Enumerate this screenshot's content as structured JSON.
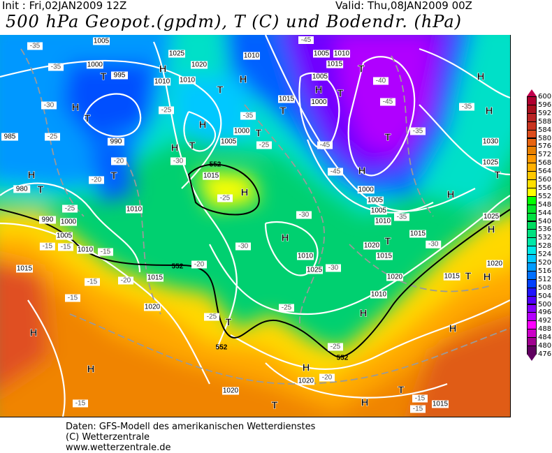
{
  "header": {
    "init": "Init : Fri,02JAN2009  12Z",
    "valid": "Valid: Thu,08JAN2009  00Z",
    "title": "500 hPa Geopot.(gpdm), T (C) und Bodendr. (hPa)"
  },
  "legend": {
    "levels": [
      "600",
      "596",
      "592",
      "588",
      "584",
      "580",
      "576",
      "572",
      "568",
      "564",
      "560",
      "556",
      "552",
      "548",
      "544",
      "540",
      "536",
      "532",
      "528",
      "524",
      "520",
      "516",
      "512",
      "508",
      "504",
      "500",
      "496",
      "492",
      "488",
      "484",
      "480",
      "476"
    ],
    "colors": [
      "#c0004c",
      "#b00030",
      "#a8101e",
      "#b82424",
      "#c83420",
      "#dc4c1c",
      "#e86410",
      "#e88000",
      "#ff9800",
      "#ffb000",
      "#ffc800",
      "#ffe000",
      "#ffff00",
      "#00ff00",
      "#00e428",
      "#00e040",
      "#00dc60",
      "#00e080",
      "#00e8a8",
      "#00e8e8",
      "#00c8ff",
      "#009cff",
      "#0070ff",
      "#0040ff",
      "#2014ff",
      "#5000ff",
      "#8400ff",
      "#b400ff",
      "#ff00ff",
      "#cc00c8",
      "#a00090",
      "#600060"
    ]
  },
  "map": {
    "centers": [
      "H",
      "T",
      "H",
      "T",
      "H",
      "H",
      "T",
      "T",
      "T",
      "T",
      "H",
      "T",
      "H",
      "T",
      "H",
      "T",
      "T",
      "H",
      "H",
      "T",
      "H",
      "H",
      "T",
      "H",
      "T",
      "H",
      "H",
      "T",
      "H",
      "T",
      "H",
      "T",
      "H",
      "H",
      "H",
      "T",
      "H",
      "H"
    ],
    "isobars": [
      "1005",
      "1000",
      "995",
      "1025",
      "1020",
      "1010",
      "1005",
      "1010",
      "1015",
      "1005",
      "1000",
      "1015",
      "1010",
      "1000",
      "1005",
      "985",
      "990",
      "980",
      "990",
      "1000",
      "1005",
      "1010",
      "1015",
      "1010",
      "1015",
      "1020",
      "1025",
      "1020",
      "1010",
      "1005",
      "1015",
      "1020",
      "1025",
      "1020",
      "1015",
      "1010",
      "1015",
      "1020",
      "1030",
      "1025",
      "1015",
      "1020",
      "1015",
      "1000",
      "1005",
      "1010",
      "1010"
    ],
    "temps": [
      "-35",
      "-35",
      "-30",
      "-25",
      "-20",
      "-20",
      "-25",
      "-35",
      "-30",
      "-25",
      "-45",
      "-40",
      "-45",
      "-45",
      "-45",
      "-35",
      "-35",
      "-30",
      "-25",
      "-30",
      "-30",
      "-25",
      "-25",
      "-15",
      "-15",
      "-15",
      "-15",
      "-20",
      "-15",
      "-20",
      "-15",
      "-15",
      "-15",
      "-25",
      "-30",
      "-20",
      "-25",
      "-35"
    ],
    "geopot_labels": [
      "552",
      "552",
      "552",
      "552"
    ]
  },
  "footer": {
    "line1": "Daten: GFS-Modell des amerikanischen Wetterdienstes",
    "line2": "(C) Wetterzentrale",
    "line3": "www.wetterzentrale.de"
  }
}
